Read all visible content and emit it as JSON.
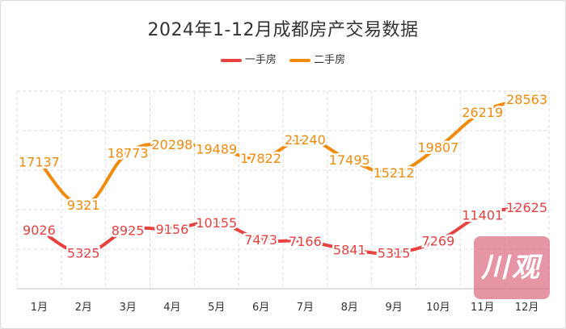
{
  "chart_data": {
    "type": "line",
    "title": "2024年1-12月成都房产交易数据",
    "categories": [
      "1月",
      "2月",
      "3月",
      "4月",
      "5月",
      "6月",
      "7月",
      "8月",
      "9月",
      "10月",
      "11月",
      "12月"
    ],
    "series": [
      {
        "name": "一手房",
        "color": "#e8413f",
        "values": [
          9026,
          5325,
          8925,
          9156,
          10155,
          7473,
          7166,
          5841,
          5315,
          7269,
          11401,
          12625
        ]
      },
      {
        "name": "二手房",
        "color": "#f28a0c",
        "values": [
          17137,
          9321,
          18773,
          20298,
          19489,
          17822,
          21240,
          17495,
          15212,
          19807,
          26219,
          28563
        ]
      }
    ],
    "y_axis_labels_visible": false,
    "grid": "dashed",
    "legend": "top-center",
    "watermark": "川观"
  }
}
